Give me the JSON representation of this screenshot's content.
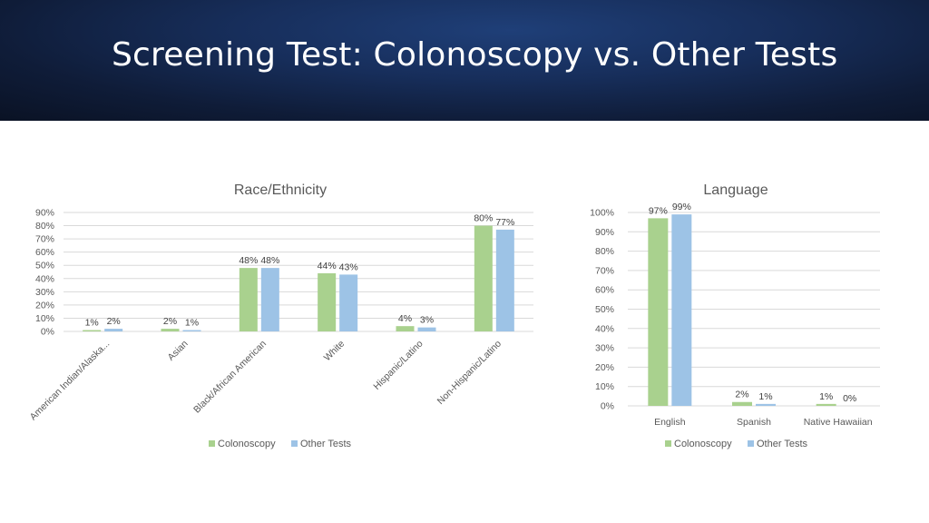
{
  "slide": {
    "title": "Screening Test: Colonoscopy vs. Other Tests"
  },
  "colors": {
    "colonoscopy": "#a9d18e",
    "other_tests": "#9dc3e6",
    "header_bg": "#13254a"
  },
  "chart_data": [
    {
      "type": "bar",
      "title": "Race/Ethnicity",
      "categories": [
        "American Indian/Alaska...",
        "Asian",
        "Black/African American",
        "White",
        "Hispanic/Latino",
        "Non-Hispanic/Latino"
      ],
      "series": [
        {
          "name": "Colonoscopy",
          "values": [
            1,
            2,
            48,
            44,
            4,
            80
          ],
          "labels": [
            "1%",
            "2%",
            "48%",
            "44%",
            "4%",
            "80%"
          ]
        },
        {
          "name": "Other Tests",
          "values": [
            2,
            1,
            48,
            43,
            3,
            77
          ],
          "labels": [
            "2%",
            "1%",
            "48%",
            "43%",
            "3%",
            "77%"
          ]
        }
      ],
      "ylim": [
        0,
        90
      ],
      "yticks": [
        "0%",
        "10%",
        "20%",
        "30%",
        "40%",
        "50%",
        "60%",
        "70%",
        "80%",
        "90%"
      ],
      "grid": true,
      "legend": "bottom",
      "xlabel": "",
      "ylabel": ""
    },
    {
      "type": "bar",
      "title": "Language",
      "categories": [
        "English",
        "Spanish",
        "Native Hawaiian"
      ],
      "series": [
        {
          "name": "Colonoscopy",
          "values": [
            97,
            2,
            1
          ],
          "labels": [
            "97%",
            "2%",
            "1%"
          ]
        },
        {
          "name": "Other Tests",
          "values": [
            99,
            1,
            0
          ],
          "labels": [
            "99%",
            "1%",
            "0%"
          ]
        }
      ],
      "ylim": [
        0,
        100
      ],
      "yticks": [
        "0%",
        "10%",
        "20%",
        "30%",
        "40%",
        "50%",
        "60%",
        "70%",
        "80%",
        "90%",
        "100%"
      ],
      "grid": true,
      "legend": "bottom",
      "xlabel": "",
      "ylabel": ""
    }
  ]
}
